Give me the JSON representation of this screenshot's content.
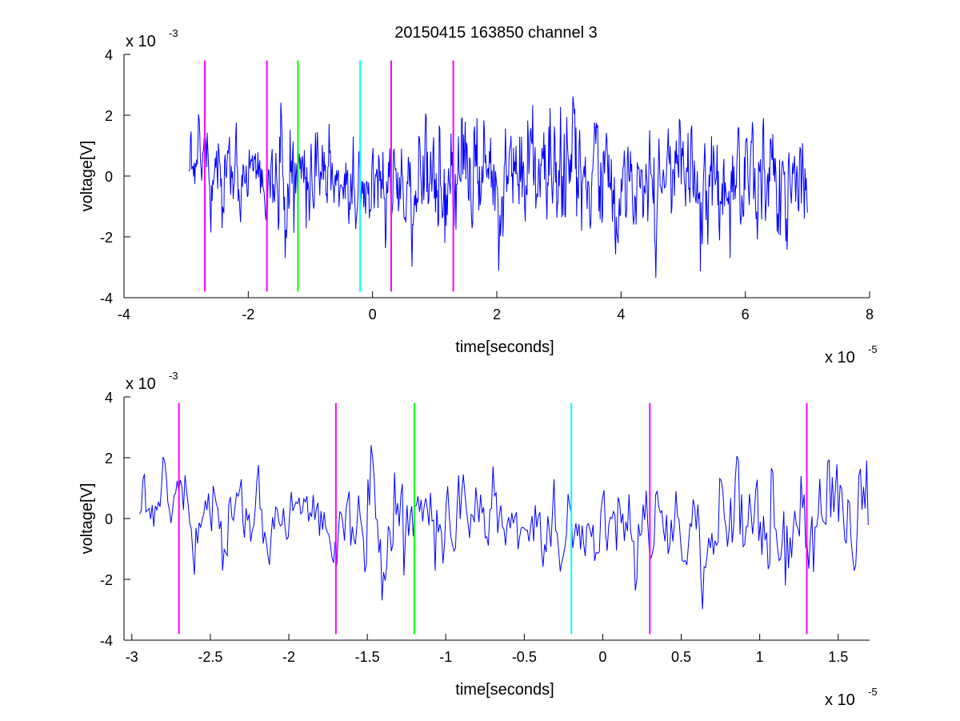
{
  "title": "20150415 163850 channel 3",
  "colors": {
    "signal": "#0000ff",
    "magenta": "#ff00ff",
    "green": "#00ff00",
    "cyan": "#00ffff",
    "axis": "#000000"
  },
  "chart_data": [
    {
      "type": "line",
      "title": "20150415 163850 channel 3",
      "xlabel": "time[seconds]",
      "ylabel": "voltage[V]",
      "xlim": [
        -4,
        8
      ],
      "ylim": [
        -4,
        4
      ],
      "x_ticks": [
        -4,
        -2,
        0,
        2,
        4,
        6,
        8
      ],
      "x_tick_labels": [
        "-4",
        "-2",
        "0",
        "2",
        "4",
        "6",
        "8"
      ],
      "y_ticks": [
        -4,
        -2,
        0,
        2,
        4
      ],
      "y_tick_labels": [
        "-4",
        "-2",
        "0",
        "2",
        "4"
      ],
      "x_multiplier": {
        "base": "x 10",
        "exponent": "-5"
      },
      "y_multiplier": {
        "base": "x 10",
        "exponent": "-3"
      },
      "grid": false,
      "series": [
        {
          "x_range": [
            -2.95,
            7.0
          ],
          "approx_amplitude": 1.0,
          "points_estimated": 1000
        }
      ],
      "markers": [
        {
          "x": -2.7,
          "color": "magenta"
        },
        {
          "x": -1.7,
          "color": "magenta"
        },
        {
          "x": -1.2,
          "color": "green"
        },
        {
          "x": -0.2,
          "color": "cyan"
        },
        {
          "x": 0.3,
          "color": "magenta"
        },
        {
          "x": 1.3,
          "color": "magenta"
        }
      ],
      "marker_y_range": [
        -3.8,
        3.8
      ]
    },
    {
      "type": "line",
      "xlabel": "time[seconds]",
      "ylabel": "voltage[V]",
      "xlim": [
        -3.05,
        1.7
      ],
      "ylim": [
        -4,
        4
      ],
      "x_ticks": [
        -3,
        -2.5,
        -2,
        -1.5,
        -1,
        -0.5,
        0,
        0.5,
        1,
        1.5
      ],
      "x_tick_labels": [
        "-3",
        "-2.5",
        "-2",
        "-1.5",
        "-1",
        "-0.5",
        "0",
        "0.5",
        "1",
        "1.5"
      ],
      "y_ticks": [
        -4,
        -2,
        0,
        2,
        4
      ],
      "y_tick_labels": [
        "-4",
        "-2",
        "0",
        "2",
        "4"
      ],
      "x_multiplier": {
        "base": "x 10",
        "exponent": "-5"
      },
      "y_multiplier": {
        "base": "x 10",
        "exponent": "-3"
      },
      "grid": false,
      "series": [
        {
          "x_range": [
            -2.95,
            1.7
          ],
          "approx_amplitude": 1.0,
          "points_estimated": 465
        }
      ],
      "markers": [
        {
          "x": -2.7,
          "color": "magenta"
        },
        {
          "x": -1.7,
          "color": "magenta"
        },
        {
          "x": -1.2,
          "color": "green"
        },
        {
          "x": -0.2,
          "color": "cyan"
        },
        {
          "x": 0.3,
          "color": "magenta"
        },
        {
          "x": 1.3,
          "color": "magenta"
        }
      ],
      "marker_y_range": [
        -3.8,
        3.8
      ]
    }
  ]
}
